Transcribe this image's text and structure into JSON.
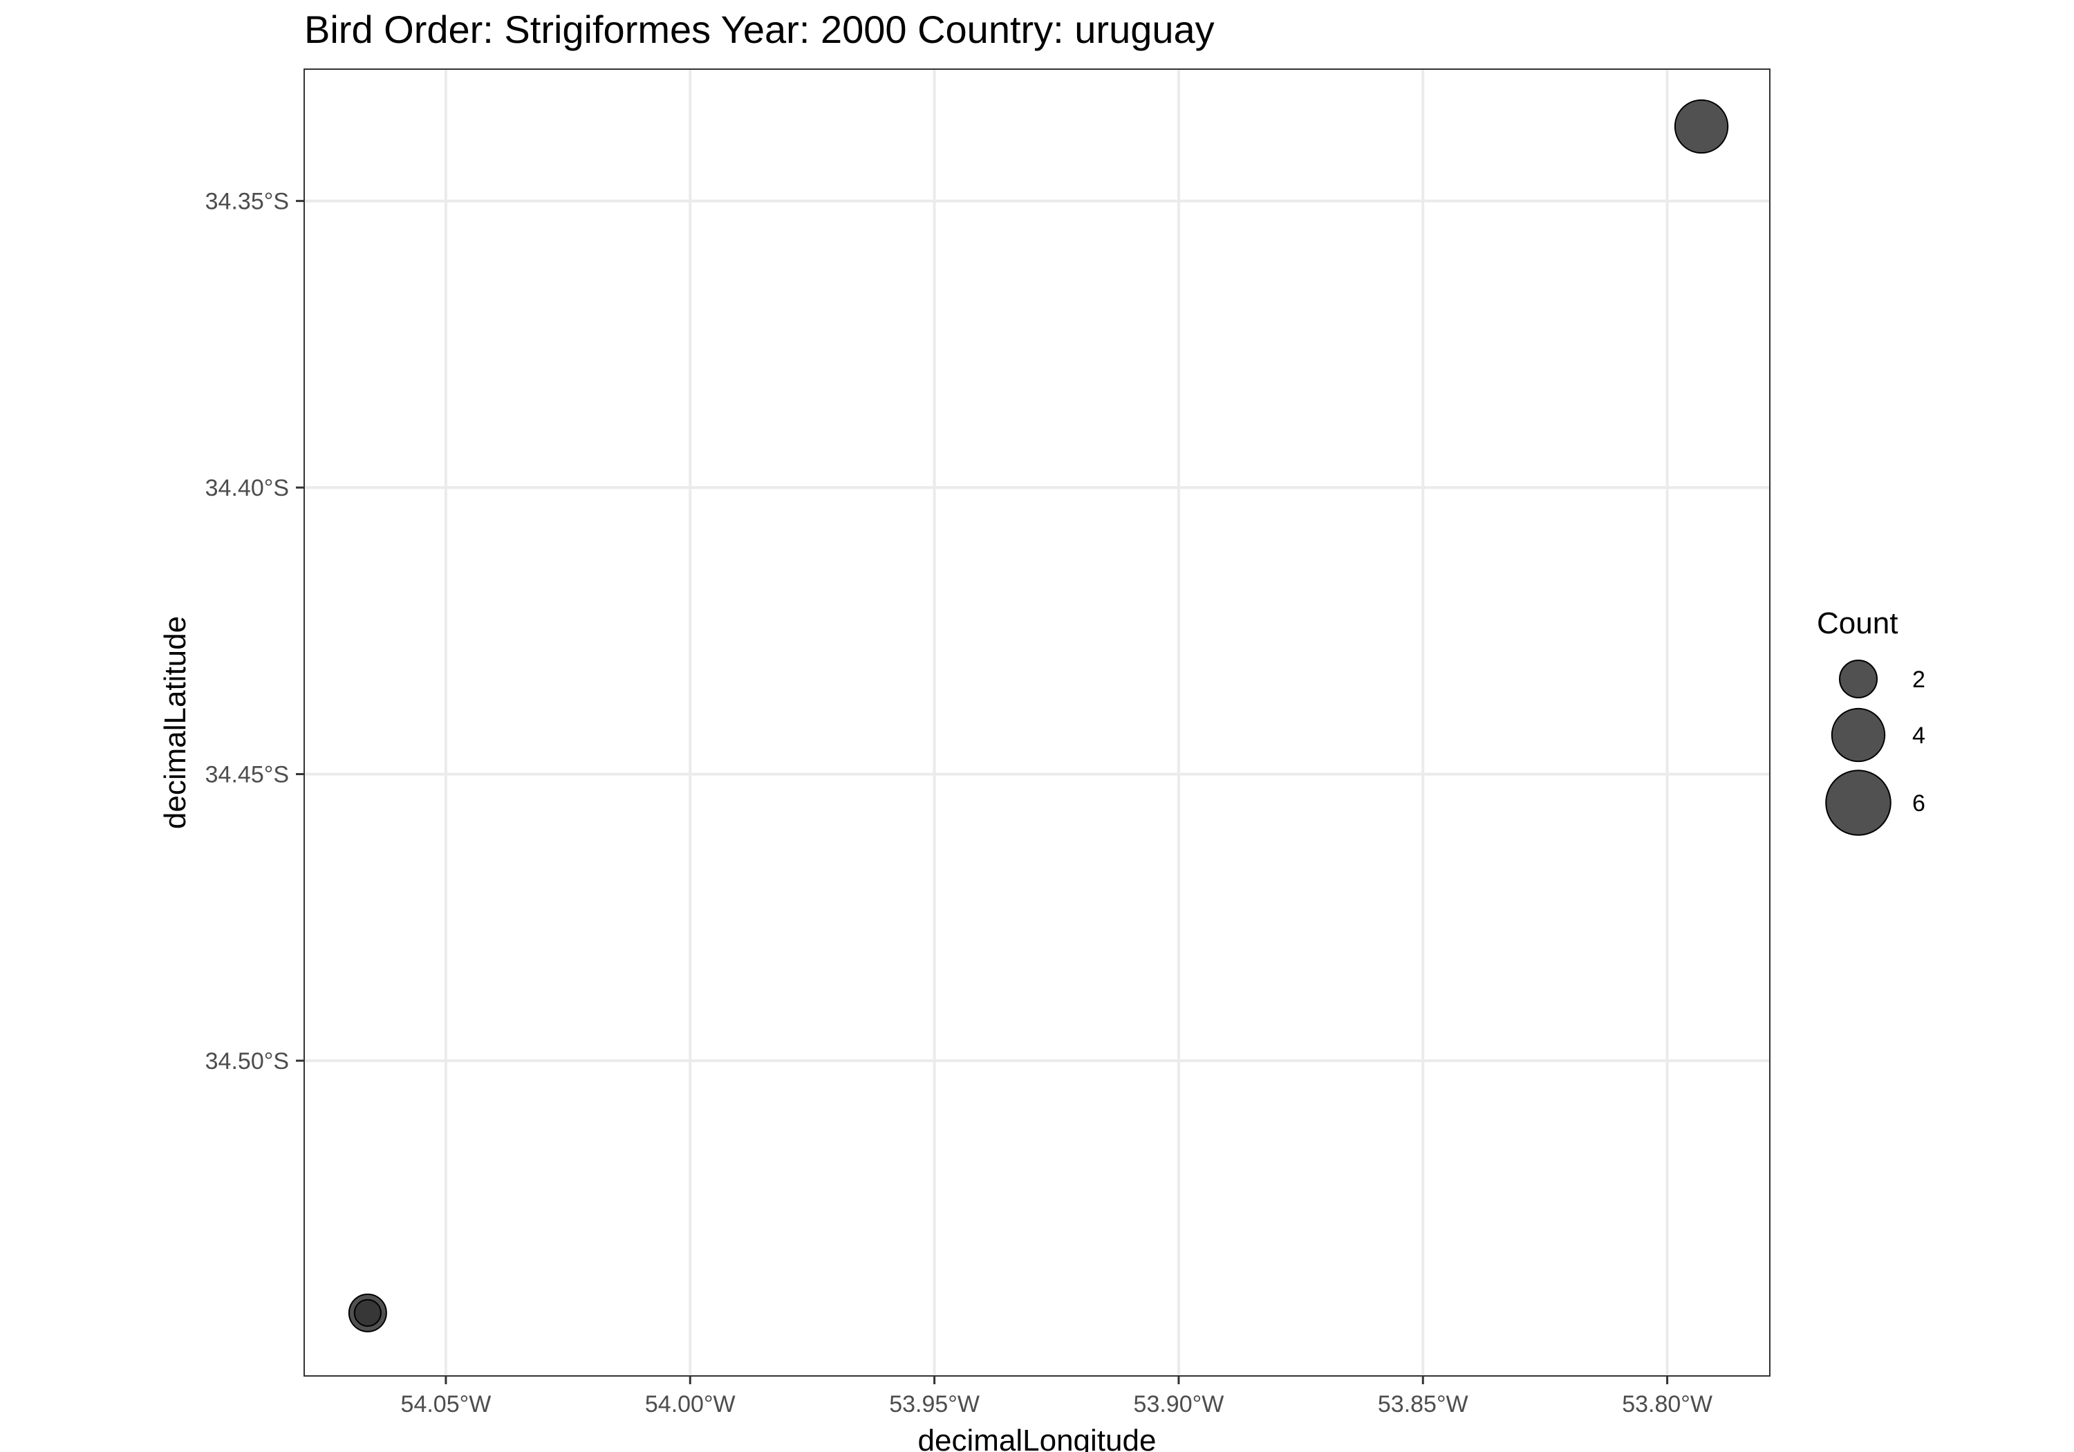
{
  "chart_data": {
    "type": "scatter",
    "title": "Bird Order: Strigiformes Year: 2000 Country: uruguay",
    "xlabel": "decimalLongitude",
    "ylabel": "decimalLatitude",
    "xlim": [
      -54.079,
      -53.779
    ],
    "ylim": [
      -34.555,
      -34.327
    ],
    "x_ticks": [
      {
        "value": -54.05,
        "label": "54.05°W"
      },
      {
        "value": -54.0,
        "label": "54.00°W"
      },
      {
        "value": -53.95,
        "label": "53.95°W"
      },
      {
        "value": -53.9,
        "label": "53.90°W"
      },
      {
        "value": -53.85,
        "label": "53.85°W"
      },
      {
        "value": -53.8,
        "label": "53.80°W"
      }
    ],
    "y_ticks": [
      {
        "value": -34.35,
        "label": "34.35°S"
      },
      {
        "value": -34.4,
        "label": "34.40°S"
      },
      {
        "value": -34.45,
        "label": "34.45°S"
      },
      {
        "value": -34.5,
        "label": "34.50°S"
      }
    ],
    "grid": true,
    "point_color": "#333333",
    "point_opacity": 0.85,
    "points": [
      {
        "x": -53.793,
        "y": -34.337,
        "count": 4
      },
      {
        "x": -54.066,
        "y": -34.544,
        "count": 2
      },
      {
        "x": -54.066,
        "y": -34.544,
        "count": 1
      }
    ],
    "legend": {
      "title": "Count",
      "placement": "right",
      "entries": [
        {
          "value": 2,
          "label": "2"
        },
        {
          "value": 4,
          "label": "4"
        },
        {
          "value": 6,
          "label": "6"
        }
      ]
    }
  }
}
